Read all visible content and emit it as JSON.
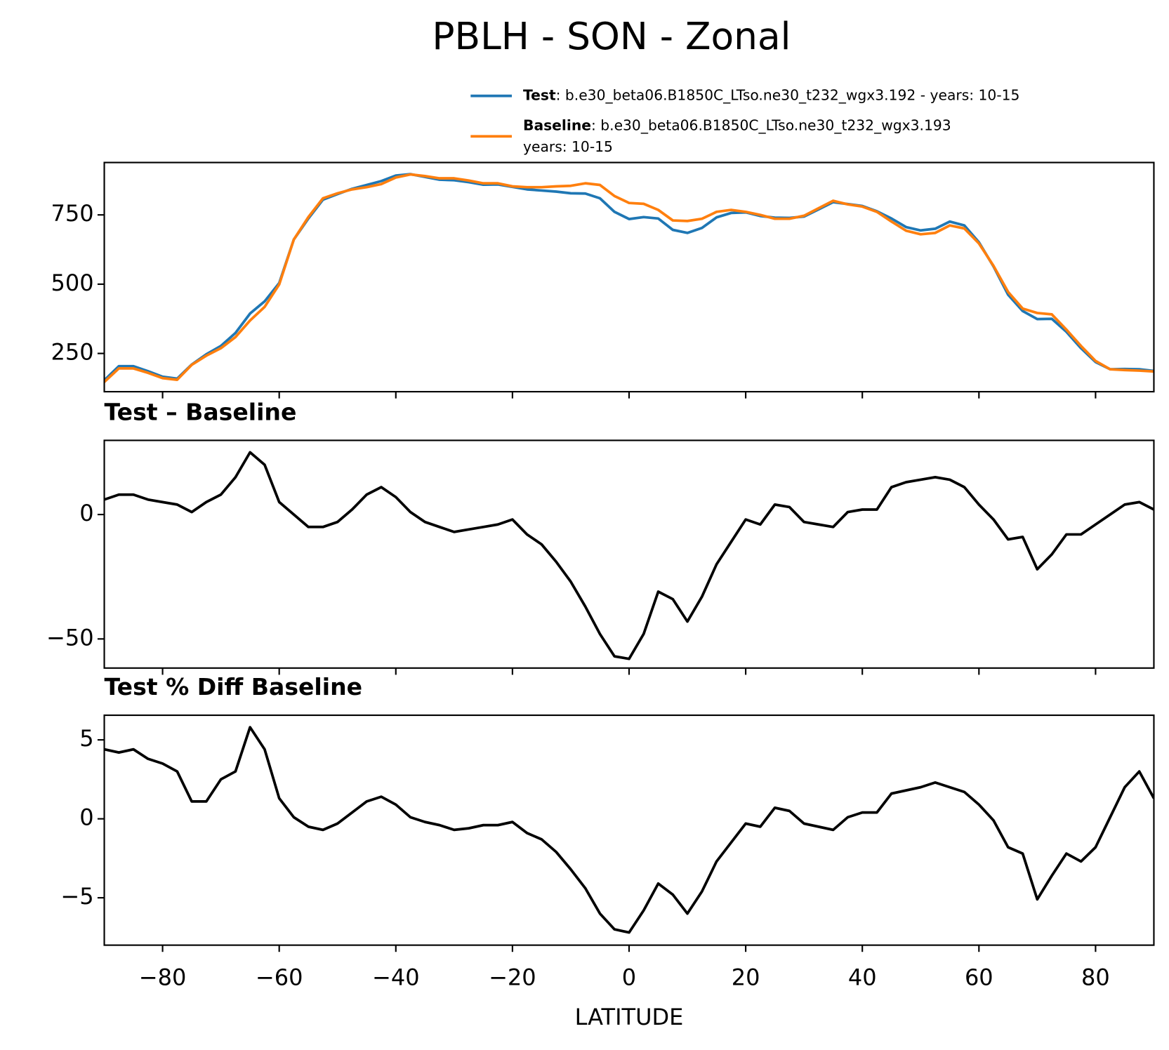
{
  "title": "PBLH - SON - Zonal",
  "chart_data": [
    {
      "type": "line",
      "x": [
        -90,
        -87.5,
        -85,
        -82.5,
        -80,
        -77.5,
        -75,
        -72.5,
        -70,
        -67.5,
        -65,
        -62.5,
        -60,
        -57.5,
        -55,
        -52.5,
        -50,
        -47.5,
        -45,
        -42.5,
        -40,
        -37.5,
        -35,
        -32.5,
        -30,
        -27.5,
        -25,
        -22.5,
        -20,
        -17.5,
        -15,
        -12.5,
        -10,
        -7.5,
        -5,
        -2.5,
        0,
        2.5,
        5,
        7.5,
        10,
        12.5,
        15,
        17.5,
        20,
        22.5,
        25,
        27.5,
        30,
        32.5,
        35,
        37.5,
        40,
        42.5,
        45,
        47.5,
        50,
        52.5,
        55,
        57.5,
        60,
        62.5,
        65,
        67.5,
        70,
        72.5,
        75,
        77.5,
        80,
        82.5,
        85,
        87.5,
        90
      ],
      "series": [
        {
          "name": "Test",
          "description": [
            ": b.e30_beta06.B1850C_LTso.ne30_t232_wgx3.192 - years: 10-15"
          ],
          "color": "#1f77b4",
          "values": [
            153,
            204,
            204,
            186,
            166,
            159,
            210,
            247,
            277,
            324,
            394,
            438,
            504,
            661,
            737,
            805,
            825,
            844,
            858,
            872,
            892,
            897,
            887,
            877,
            875,
            868,
            859,
            860,
            851,
            842,
            838,
            834,
            828,
            827,
            810,
            761,
            735,
            742,
            737,
            696,
            685,
            703,
            741,
            757,
            759,
            746,
            740,
            739,
            744,
            770,
            796,
            789,
            782,
            763,
            737,
            706,
            694,
            700,
            726,
            712,
            651,
            564,
            462,
            403,
            374,
            375,
            328,
            269,
            219,
            193,
            194,
            193,
            187
          ]
        },
        {
          "name": "Baseline",
          "description": [
            ": b.e30_beta06.B1850C_LTso.ne30_t232_wgx3.193",
            "years: 10-15"
          ],
          "color": "#ff7f0e",
          "values": [
            147,
            196,
            196,
            180,
            161,
            155,
            209,
            242,
            269,
            309,
            369,
            418,
            499,
            661,
            742,
            810,
            828,
            842,
            850,
            861,
            885,
            896,
            890,
            882,
            882,
            874,
            864,
            864,
            853,
            850,
            850,
            853,
            855,
            864,
            858,
            818,
            793,
            790,
            768,
            730,
            728,
            736,
            761,
            768,
            761,
            750,
            736,
            736,
            747,
            774,
            801,
            788,
            780,
            761,
            726,
            693,
            680,
            685,
            712,
            701,
            647,
            566,
            472,
            412,
            396,
            391,
            336,
            277,
            223,
            193,
            190,
            188,
            185
          ]
        }
      ],
      "xlim": [
        -90,
        90
      ],
      "xticks": [
        -80,
        -60,
        -40,
        -20,
        0,
        20,
        40,
        60,
        80
      ],
      "show_xtick_labels": false,
      "ylim": [
        112,
        939
      ],
      "yticks": [
        250,
        500,
        750
      ],
      "legend": "upper right outside"
    },
    {
      "type": "line",
      "title": "Test – Baseline",
      "x": [
        -90,
        -87.5,
        -85,
        -82.5,
        -80,
        -77.5,
        -75,
        -72.5,
        -70,
        -67.5,
        -65,
        -62.5,
        -60,
        -57.5,
        -55,
        -52.5,
        -50,
        -47.5,
        -45,
        -42.5,
        -40,
        -37.5,
        -35,
        -32.5,
        -30,
        -27.5,
        -25,
        -22.5,
        -20,
        -17.5,
        -15,
        -12.5,
        -10,
        -7.5,
        -5,
        -2.5,
        0,
        2.5,
        5,
        7.5,
        10,
        12.5,
        15,
        17.5,
        20,
        22.5,
        25,
        27.5,
        30,
        32.5,
        35,
        37.5,
        40,
        42.5,
        45,
        47.5,
        50,
        52.5,
        55,
        57.5,
        60,
        62.5,
        65,
        67.5,
        70,
        72.5,
        75,
        77.5,
        80,
        82.5,
        85,
        87.5,
        90
      ],
      "values": [
        6,
        8,
        8,
        6,
        5,
        4,
        1,
        5,
        8,
        15,
        25,
        20,
        5,
        0,
        -5,
        -5,
        -3,
        2,
        8,
        11,
        7,
        1,
        -3,
        -5,
        -7,
        -6,
        -5,
        -4,
        -2,
        -8,
        -12,
        -19,
        -27,
        -37,
        -48,
        -57,
        -58,
        -48,
        -31,
        -34,
        -43,
        -33,
        -20,
        -11,
        -2,
        -4,
        4,
        3,
        -3,
        -4,
        -5,
        1,
        2,
        2,
        11,
        13,
        14,
        15,
        14,
        11,
        4,
        -2,
        -10,
        -9,
        -22,
        -16,
        -8,
        -8,
        -4,
        0,
        4,
        5,
        2
      ],
      "color": "#000000",
      "xlim": [
        -90,
        90
      ],
      "xticks": [
        -80,
        -60,
        -40,
        -20,
        0,
        20,
        40,
        60,
        80
      ],
      "show_xtick_labels": false,
      "ylim": [
        -61.7,
        29.8
      ],
      "yticks": [
        {
          "value": -50,
          "label": "−50"
        },
        0
      ]
    },
    {
      "type": "line",
      "title": "Test % Diff Baseline",
      "xlabel": "LATITUDE",
      "x": [
        -90,
        -87.5,
        -85,
        -82.5,
        -80,
        -77.5,
        -75,
        -72.5,
        -70,
        -67.5,
        -65,
        -62.5,
        -60,
        -57.5,
        -55,
        -52.5,
        -50,
        -47.5,
        -45,
        -42.5,
        -40,
        -37.5,
        -35,
        -32.5,
        -30,
        -27.5,
        -25,
        -22.5,
        -20,
        -17.5,
        -15,
        -12.5,
        -10,
        -7.5,
        -5,
        -2.5,
        0,
        2.5,
        5,
        7.5,
        10,
        12.5,
        15,
        17.5,
        20,
        22.5,
        25,
        27.5,
        30,
        32.5,
        35,
        37.5,
        40,
        42.5,
        45,
        47.5,
        50,
        52.5,
        55,
        57.5,
        60,
        62.5,
        65,
        67.5,
        70,
        72.5,
        75,
        77.5,
        80,
        82.5,
        85,
        87.5,
        90
      ],
      "values": [
        4.4,
        4.2,
        4.4,
        3.8,
        3.5,
        3.0,
        1.1,
        1.1,
        2.5,
        3.0,
        5.8,
        4.4,
        1.3,
        0.1,
        -0.5,
        -0.7,
        -0.3,
        0.4,
        1.1,
        1.4,
        0.9,
        0.1,
        -0.2,
        -0.4,
        -0.7,
        -0.6,
        -0.4,
        -0.4,
        -0.2,
        -0.9,
        -1.3,
        -2.1,
        -3.2,
        -4.4,
        -6.0,
        -7.0,
        -7.2,
        -5.8,
        -4.1,
        -4.8,
        -6.0,
        -4.6,
        -2.7,
        -1.5,
        -0.3,
        -0.5,
        0.7,
        0.5,
        -0.3,
        -0.5,
        -0.7,
        0.1,
        0.4,
        0.4,
        1.6,
        1.8,
        2.0,
        2.3,
        2.0,
        1.7,
        0.9,
        -0.1,
        -1.8,
        -2.2,
        -5.1,
        -3.6,
        -2.2,
        -2.7,
        -1.8,
        0.1,
        2.0,
        3.0,
        1.3
      ],
      "color": "#000000",
      "xlim": [
        -90,
        90
      ],
      "xticks": [
        {
          "value": -80,
          "label": "−80"
        },
        {
          "value": -60,
          "label": "−60"
        },
        {
          "value": -40,
          "label": "−40"
        },
        {
          "value": -20,
          "label": "−20"
        },
        0,
        20,
        40,
        60,
        80
      ],
      "show_xtick_labels": true,
      "ylim": [
        -8,
        6.56
      ],
      "yticks": [
        {
          "value": -5,
          "label": "−5"
        },
        0,
        5
      ]
    }
  ]
}
